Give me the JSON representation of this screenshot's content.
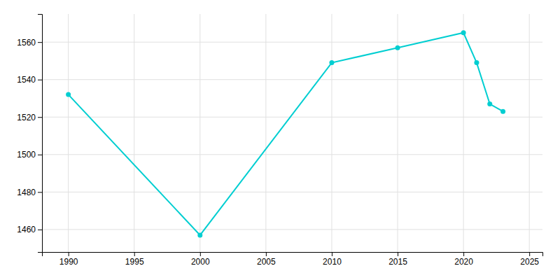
{
  "chart_data": {
    "type": "line",
    "x": [
      1990,
      2000,
      2010,
      2015,
      2020,
      2021,
      2022,
      2023
    ],
    "values": [
      1532,
      1457,
      1549,
      1557,
      1565,
      1549,
      1527,
      1523
    ],
    "color": "#00CED1",
    "marker": "circle",
    "xlim": [
      1988,
      2026
    ],
    "ylim": [
      1448,
      1575
    ],
    "xticks": [
      1990,
      1995,
      2000,
      2005,
      2010,
      2015,
      2020,
      2025
    ],
    "yticks": [
      1460,
      1480,
      1500,
      1520,
      1540,
      1560
    ],
    "grid": true
  }
}
